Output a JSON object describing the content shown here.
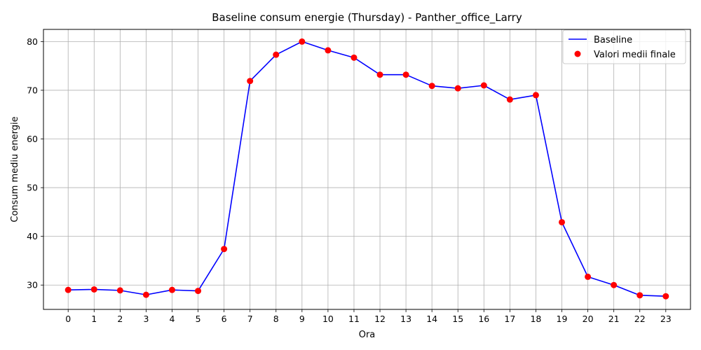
{
  "chart_data": {
    "type": "line",
    "title": "Baseline consum energie (Thursday) - Panther_office_Larry",
    "xlabel": "Ora",
    "ylabel": "Consum mediu energie",
    "x": [
      0,
      1,
      2,
      3,
      4,
      5,
      6,
      7,
      8,
      9,
      10,
      11,
      12,
      13,
      14,
      15,
      16,
      17,
      18,
      19,
      20,
      21,
      22,
      23
    ],
    "x_ticks": [
      "0",
      "1",
      "2",
      "3",
      "4",
      "5",
      "6",
      "7",
      "8",
      "9",
      "10",
      "11",
      "12",
      "13",
      "14",
      "15",
      "16",
      "17",
      "18",
      "19",
      "20",
      "21",
      "22",
      "23"
    ],
    "xlim": [
      -0.95,
      23.95
    ],
    "ylim": [
      25,
      82.5
    ],
    "y_ticks": [
      30,
      40,
      50,
      60,
      70,
      80
    ],
    "grid": true,
    "legend_position": "top-right",
    "series": [
      {
        "name": "Baseline",
        "kind": "line",
        "color": "#0000ff",
        "values": [
          29.0,
          29.1,
          28.9,
          28.0,
          29.0,
          28.8,
          37.4,
          71.9,
          77.3,
          80.0,
          78.2,
          76.7,
          73.2,
          73.2,
          70.9,
          70.4,
          71.0,
          68.1,
          69.0,
          42.9,
          31.7,
          30.0,
          27.9,
          27.7
        ]
      },
      {
        "name": "Valori medii finale",
        "kind": "scatter",
        "color": "#ff0000",
        "values": [
          29.0,
          29.1,
          28.9,
          28.0,
          29.0,
          28.8,
          37.4,
          71.9,
          77.3,
          80.0,
          78.2,
          76.7,
          73.2,
          73.2,
          70.9,
          70.4,
          71.0,
          68.1,
          69.0,
          42.9,
          31.7,
          30.0,
          27.9,
          27.7
        ]
      }
    ]
  }
}
